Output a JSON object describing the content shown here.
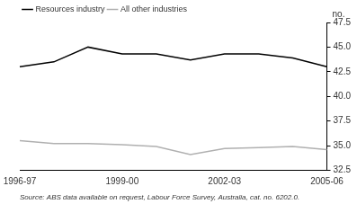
{
  "chart_data": {
    "type": "line",
    "categories": [
      "1996-97",
      null,
      null,
      "1999-00",
      null,
      null,
      "2002-03",
      null,
      null,
      "2005-06"
    ],
    "series": [
      {
        "name": "Resources industry",
        "color": "#000000",
        "values": [
          43.0,
          43.5,
          45.0,
          44.3,
          44.3,
          43.7,
          44.3,
          44.3,
          43.9,
          43.0
        ]
      },
      {
        "name": "All other industries",
        "color": "#b0b0b0",
        "values": [
          35.5,
          35.2,
          35.2,
          35.1,
          34.9,
          34.1,
          34.7,
          34.8,
          34.9,
          34.6
        ]
      }
    ],
    "y_label": "no.",
    "source": "Source: ABS data available on request, Labour Force Survey, Australia, cat. no. 6202.0.",
    "ylim": [
      32.5,
      47.5
    ],
    "yticks": [
      32.5,
      {
        "value": 35,
        "label": "35.0"
      },
      37.5,
      {
        "value": 40,
        "label": "40.0"
      },
      42.5,
      {
        "value": 45,
        "label": "45.0"
      },
      47.5
    ],
    "grid": false,
    "legend": "top-left"
  }
}
